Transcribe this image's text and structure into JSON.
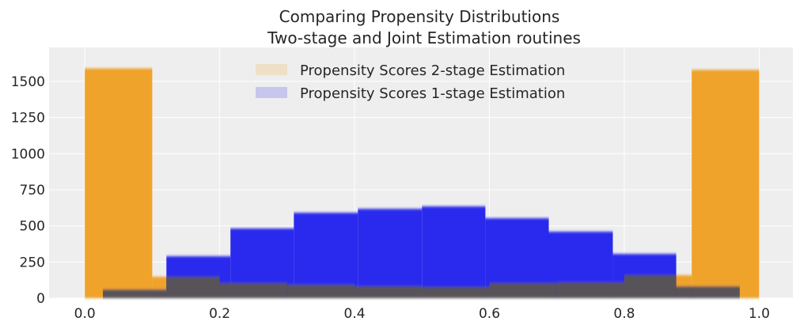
{
  "chart_data": {
    "type": "bar",
    "title": "Comparing Propensity Distributions",
    "subtitle": "Two-stage and Joint Estimation routines",
    "xlim": [
      -0.053,
      1.05
    ],
    "ylim": [
      0,
      1735
    ],
    "xticks": [
      "0.0",
      "0.2",
      "0.4",
      "0.6",
      "0.8",
      "1.0"
    ],
    "yticks": [
      "0",
      "250",
      "500",
      "750",
      "1000",
      "1250",
      "1500"
    ],
    "grid": true,
    "legend_placement": "top-center",
    "series": [
      {
        "name": "Propensity Scores 2-stage Estimation",
        "color": "#efa32b",
        "bin_edges": [
          0.0,
          0.1,
          0.2,
          0.3,
          0.4,
          0.5,
          0.6,
          0.7,
          0.8,
          0.9,
          1.0
        ],
        "values": [
          1590,
          148,
          104,
          93,
          82,
          77,
          104,
          109,
          159,
          1580
        ]
      },
      {
        "name": "Propensity Scores 1-stage Estimation",
        "color": "#2a2aee",
        "bin_edges": [
          0.027,
          0.121,
          0.216,
          0.31,
          0.405,
          0.5,
          0.594,
          0.688,
          0.783,
          0.877,
          0.971
        ],
        "values": [
          60,
          290,
          482,
          591,
          618,
          635,
          553,
          460,
          306,
          82
        ]
      }
    ],
    "overlap_color": "#595259",
    "background": "#eeeeee"
  }
}
